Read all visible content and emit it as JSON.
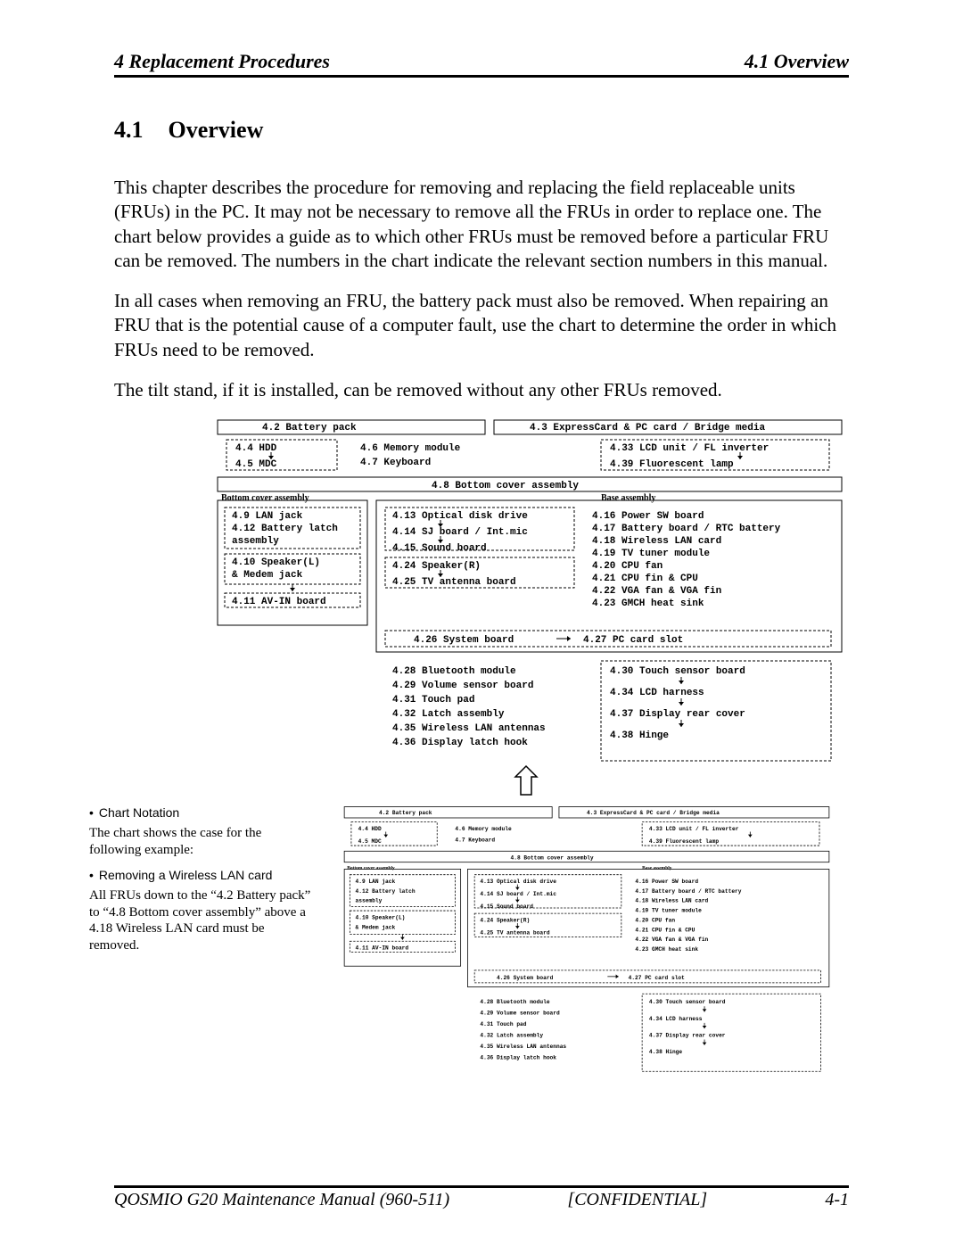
{
  "header": {
    "left": "4 Replacement Procedures",
    "right": "4.1 Overview"
  },
  "section": {
    "num": "4.1",
    "title": "Overview"
  },
  "para1": "This chapter describes the procedure for removing and replacing the field replaceable units (FRUs) in the PC. It may not be necessary to remove all the FRUs in order to replace one. The chart below provides a guide as to which other FRUs must be removed before a particular FRU can be removed. The numbers in the chart indicate the relevant section numbers in this manual.",
  "para2": "In all cases when removing an FRU, the battery pack must also be removed. When repairing an FRU that is the potential cause of a computer fault, use the chart to determine the order in which FRUs need to be removed.",
  "para3": "The tilt stand, if it is installed, can be removed without any other FRUs removed.",
  "notation": {
    "head1": "Chart Notation",
    "text1": "The chart shows the case for the following example:",
    "head2": "Removing a Wireless LAN card",
    "text2": "All FRUs down to the “4.2 Battery pack” to “4.8 Bottom cover assembly” above a 4.18 Wireless LAN card must be removed."
  },
  "chart": {
    "top": {
      "l": "4.2   Battery pack",
      "r": "4.3  ExpressCard & PC card / Bridge media"
    },
    "row1": {
      "a1": "4.4   HDD",
      "a2": "4.5   MDC",
      "b1": "4.6  Memory module",
      "b2": "4.7  Keyboard",
      "c1": "4.33  LCD unit / FL inverter",
      "c2": "4.39  Fluorescent lamp"
    },
    "row2": "4.8  Bottom cover assembly",
    "groupL": {
      "title": "Bottom cover assembly",
      "l1": "4.9  LAN jack",
      "l2": "4.12  Battery latch",
      "l3": "        assembly",
      "l4": "4.10  Speaker(L)",
      "l5": "  & Medem jack",
      "l6": "4.11  AV-IN board"
    },
    "groupM": {
      "m1": "4.13  Optical disk drive",
      "m2": "4.14  SJ board / Int.mic",
      "m3": "4.15  Sound board",
      "m4": "4.24  Speaker(R)",
      "m5": "4.25  TV antenna board"
    },
    "groupR": {
      "title": "Base assembly",
      "r1": "4.16  Power SW board",
      "r2": "4.17  Battery board / RTC battery",
      "r3": "4.18  Wireless LAN card",
      "r4": "4.19  TV tuner module",
      "r5": "4.20  CPU fan",
      "r6": "4.21  CPU fin & CPU",
      "r7": "4.22  VGA fan & VGA fin",
      "r8": "4.23  GMCH heat sink"
    },
    "sys": {
      "l": "4.26  System board",
      "r": "4.27  PC card slot"
    },
    "bottomL": {
      "b1": "4.28  Bluetooth module",
      "b2": "4.29  Volume sensor board",
      "b3": "4.31  Touch pad",
      "b4": "4.32  Latch assembly",
      "b5": "4.35  Wireless LAN antennas",
      "b6": "4.36  Display latch hook"
    },
    "bottomR": {
      "b1": "4.30  Touch sensor board",
      "b2": "4.34  LCD harness",
      "b3": "4.37  Display rear cover",
      "b4": "4.38  Hinge"
    }
  },
  "footer": {
    "left": "QOSMIO G20  Maintenance Manual (960-511)",
    "mid": "[CONFIDENTIAL]",
    "right": "4-1"
  },
  "style": {
    "stroke": "#000000",
    "solid_w": 1,
    "dash": "3,2",
    "font_mono": "Courier New",
    "font_size_chart": 11,
    "font_size_chart_sm": 8
  }
}
